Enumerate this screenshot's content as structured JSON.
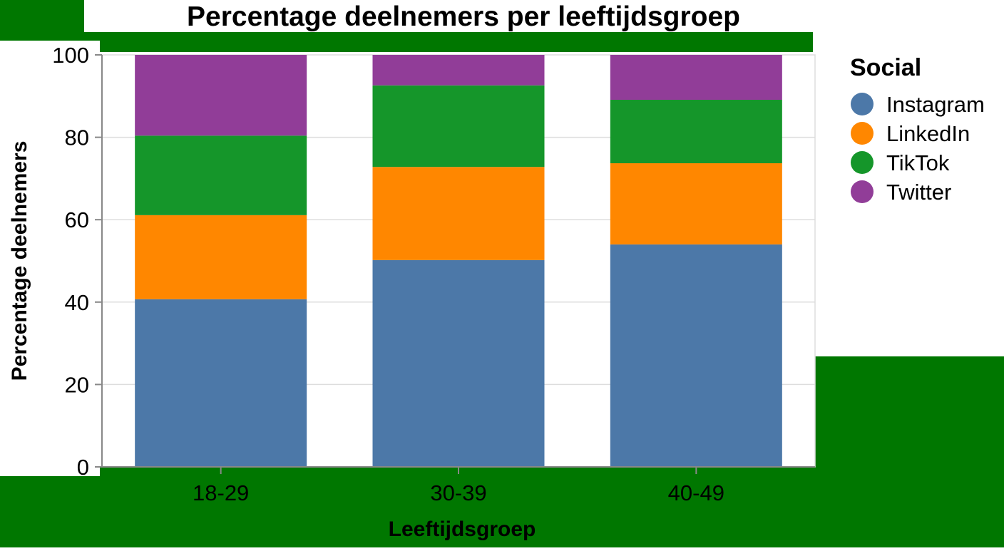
{
  "chart_data": {
    "type": "bar",
    "stacked": true,
    "title": "Percentage deelnemers per leeftijdsgroep",
    "xlabel": "Leeftijdsgroep",
    "ylabel": "Percentage deelnemers",
    "categories": [
      "18-29",
      "30-39",
      "40-49"
    ],
    "ylim": [
      0,
      100
    ],
    "yticks": [
      0,
      20,
      40,
      60,
      80,
      100
    ],
    "grid": true,
    "legend": {
      "title": "Social",
      "placement": "right"
    },
    "series": [
      {
        "name": "Instagram",
        "color": "#4c78a8",
        "values": [
          40.7,
          50.2,
          54.0
        ]
      },
      {
        "name": "LinkedIn",
        "color": "#ff8700",
        "values": [
          20.4,
          22.6,
          19.7
        ]
      },
      {
        "name": "TikTok",
        "color": "#15962a",
        "values": [
          19.3,
          19.8,
          15.4
        ]
      },
      {
        "name": "Twitter",
        "color": "#913d98",
        "values": [
          19.6,
          7.4,
          10.9
        ]
      }
    ]
  },
  "colors": {
    "background_accent": "#007700"
  }
}
